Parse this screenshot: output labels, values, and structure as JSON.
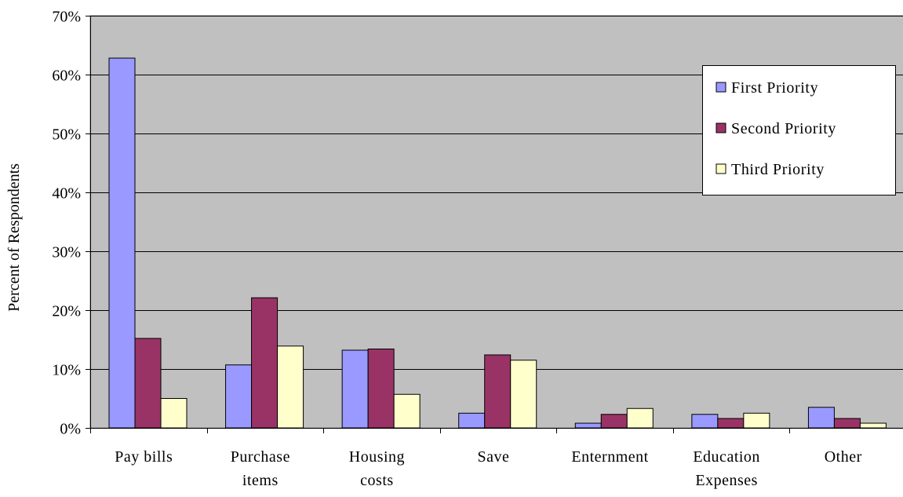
{
  "chart_data": {
    "type": "bar",
    "title": "",
    "xlabel": "",
    "ylabel": "Percent of Respondents",
    "ylim": [
      0,
      70
    ],
    "y_ticks": [
      "0%",
      "10%",
      "20%",
      "30%",
      "40%",
      "50%",
      "60%",
      "70%"
    ],
    "categories": [
      [
        "Pay bills"
      ],
      [
        "Purchase",
        "items"
      ],
      [
        "Housing",
        "costs"
      ],
      [
        "Save"
      ],
      [
        "Enternment"
      ],
      [
        "Education",
        "Expenses"
      ],
      [
        "Other"
      ]
    ],
    "series": [
      {
        "name": "First Priority",
        "values": [
          62.8,
          10.7,
          13.2,
          2.5,
          0.8,
          2.3,
          3.5
        ]
      },
      {
        "name": "Second Priority",
        "values": [
          15.2,
          22.1,
          13.4,
          12.4,
          2.3,
          1.6,
          1.6
        ]
      },
      {
        "name": "Third Priority",
        "values": [
          5.0,
          13.9,
          5.7,
          11.5,
          3.3,
          2.5,
          0.8
        ]
      }
    ],
    "colors": {
      "First Priority": "#9999ff",
      "Second Priority": "#993366",
      "Third Priority": "#ffffcc",
      "plot_background": "#c0c0c0",
      "gridline": "#000000"
    },
    "grid": true,
    "legend_position": "top-right"
  }
}
